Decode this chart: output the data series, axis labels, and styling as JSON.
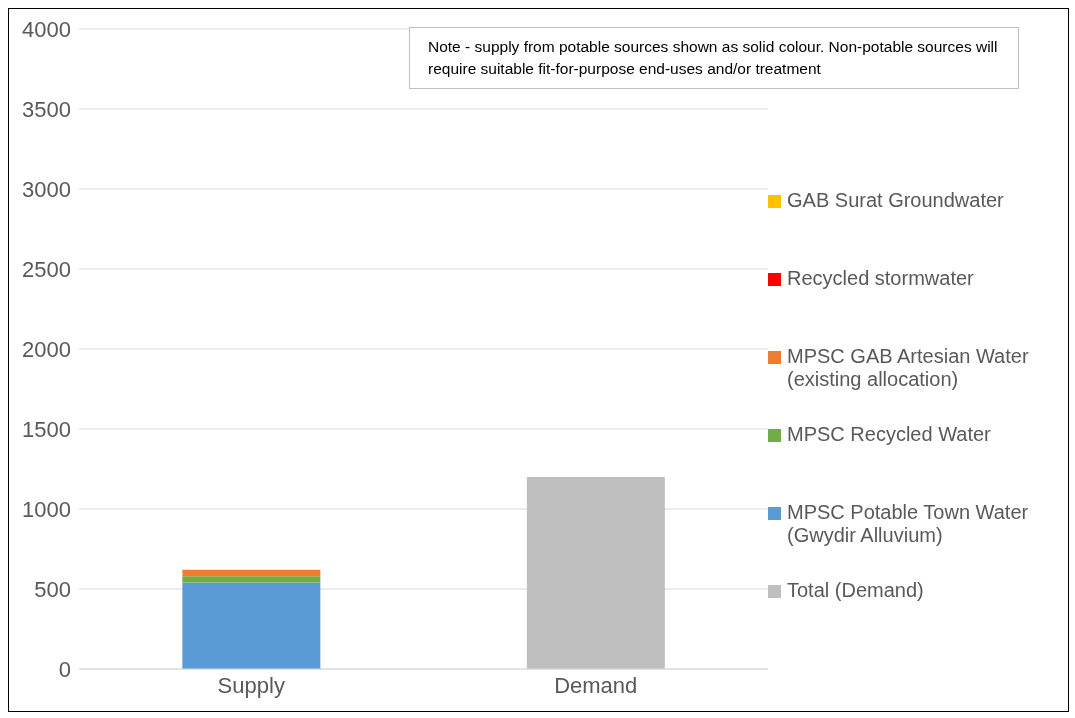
{
  "chart_data": {
    "type": "bar",
    "stacked": true,
    "categories": [
      "Supply",
      "Demand"
    ],
    "series": [
      {
        "name": "MPSC Potable Town Water (Gwydir Alluvium)",
        "color": "#5b9bd5",
        "values": [
          540,
          null
        ]
      },
      {
        "name": "MPSC Recycled Water",
        "color": "#70ad47",
        "values": [
          40,
          null
        ]
      },
      {
        "name": "MPSC GAB Artesian Water (existing allocation)",
        "color": "#ed7d31",
        "values": [
          40,
          null
        ]
      },
      {
        "name": "Recycled stormwater",
        "color": "#ff0000",
        "values": [
          null,
          null
        ]
      },
      {
        "name": "GAB Surat Groundwater",
        "color": "#ffc000",
        "values": [
          null,
          null
        ]
      },
      {
        "name": "Total (Demand)",
        "color": "#bfbfbf",
        "values": [
          null,
          1200
        ]
      }
    ],
    "ylim": [
      0,
      4000
    ],
    "yticks": [
      0,
      500,
      1000,
      1500,
      2000,
      2500,
      3000,
      3500,
      4000
    ],
    "grid": "y",
    "legend": "right",
    "annotations": [
      "Note - supply from potable sources shown as solid colour. Non-potable sources will require suitable fit-for-purpose end-uses and/or treatment"
    ]
  }
}
